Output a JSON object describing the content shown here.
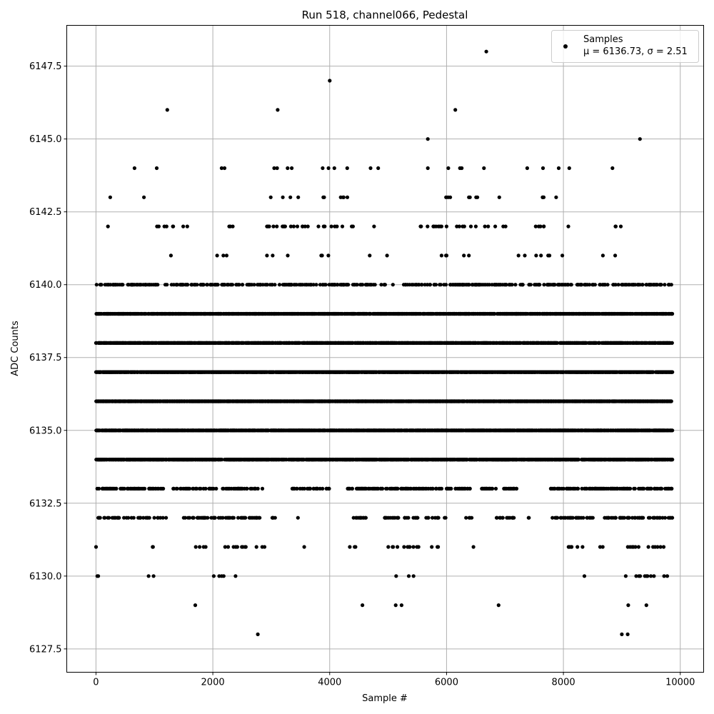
{
  "chart_data": {
    "type": "scatter",
    "title": "Run 518, channel066, Pedestal",
    "xlabel": "Sample #",
    "ylabel": "ADC Counts",
    "xlim": [
      -500,
      10400
    ],
    "ylim": [
      6126.7,
      6148.9
    ],
    "x_ticks": [
      0,
      2000,
      4000,
      6000,
      8000,
      10000
    ],
    "x_tick_labels": [
      "0",
      "2000",
      "4000",
      "6000",
      "8000",
      "10000"
    ],
    "y_ticks": [
      6127.5,
      6130.0,
      6132.5,
      6135.0,
      6137.5,
      6140.0,
      6142.5,
      6145.0,
      6147.5
    ],
    "y_tick_labels": [
      "6127.5",
      "6130.0",
      "6132.5",
      "6135.0",
      "6137.5",
      "6140.0",
      "6142.5",
      "6145.0",
      "6147.5"
    ],
    "grid": true,
    "legend": {
      "placement": "top-right",
      "entries": [
        "Samples",
        "μ = 6136.73, σ = 2.51"
      ]
    },
    "marker_color": "#000000",
    "series": [
      {
        "name": "Samples",
        "n_points": 9900,
        "x_range": [
          0,
          9860
        ],
        "sparse_levels": [
          {
            "y": 6148,
            "x": [
              6680
            ]
          },
          {
            "y": 6147,
            "x": [
              4000
            ]
          },
          {
            "y": 6146,
            "x": [
              1220,
              3110,
              6150
            ]
          },
          {
            "y": 6145,
            "x": [
              5680,
              9310
            ]
          },
          {
            "y": 6144,
            "x": [
              660,
              1040,
              2150,
              2200,
              3050,
              3100,
              3280,
              3350,
              3880,
              3980,
              4080,
              4300,
              4700,
              4830,
              5680,
              6030,
              6230,
              6260,
              6640,
              7380,
              7650,
              7920,
              8100,
              8840
            ]
          },
          {
            "y": 6129,
            "x": [
              1700,
              4560,
              5130,
              5230,
              6890,
              9110,
              9420
            ]
          },
          {
            "y": 6128,
            "x": [
              2770,
              9000,
              9100
            ]
          }
        ],
        "dense_levels": [
          {
            "y": 6143,
            "segments": [
              [
                240,
                245
              ],
              [
                730,
                820
              ],
              [
                1150,
                1350
              ],
              [
                1430,
                1450
              ],
              [
                2950,
                3500
              ],
              [
                3650,
                4000
              ],
              [
                4100,
                4300
              ],
              [
                4650,
                4720
              ],
              [
                5990,
                6750
              ],
              [
                6850,
                6900
              ],
              [
                7340,
                7430
              ],
              [
                7600,
                7900
              ]
            ],
            "density": 0.05
          },
          {
            "y": 6142,
            "segments": [
              [
                90,
                280
              ],
              [
                520,
                570
              ],
              [
                780,
                800
              ],
              [
                1030,
                1100
              ],
              [
                1150,
                1400
              ],
              [
                1480,
                1600
              ],
              [
                2280,
                2350
              ],
              [
                2900,
                4450
              ],
              [
                4650,
                4800
              ],
              [
                5020,
                5080
              ],
              [
                5530,
                6850
              ],
              [
                6950,
                7050
              ],
              [
                7350,
                7950
              ],
              [
                8050,
                8100
              ],
              [
                8890,
                9050
              ],
              [
                9300,
                9310
              ],
              [
                9800,
                9850
              ]
            ],
            "density": 0.06
          },
          {
            "y": 6141,
            "segments": [
              [
                60,
                120
              ],
              [
                1280,
                1300
              ],
              [
                1860,
                1870
              ],
              [
                2050,
                2250
              ],
              [
                2720,
                2730
              ],
              [
                2850,
                3050
              ],
              [
                3200,
                3450
              ],
              [
                3750,
                4150
              ],
              [
                4260,
                4320
              ],
              [
                4600,
                4750
              ],
              [
                4980,
                5010
              ],
              [
                5870,
                6000
              ],
              [
                6120,
                6300
              ],
              [
                6350,
                6500
              ],
              [
                6650,
                7050
              ],
              [
                7200,
                7800
              ],
              [
                7980,
                8020
              ],
              [
                8650,
                8900
              ],
              [
                9160,
                9170
              ]
            ],
            "density": 0.05
          },
          {
            "y": 6140,
            "segments": [
              [
                0,
                1850
              ],
              [
                1850,
                2450
              ],
              [
                2500,
                3550
              ],
              [
                3550,
                5100
              ],
              [
                5250,
                9850
              ]
            ],
            "density": 0.2
          },
          {
            "y": 6139,
            "segments": [
              [
                0,
                9860
              ]
            ],
            "density": 0.5
          },
          {
            "y": 6138,
            "segments": [
              [
                0,
                9860
              ]
            ],
            "density": 0.6
          },
          {
            "y": 6137,
            "segments": [
              [
                0,
                9860
              ]
            ],
            "density": 0.65
          },
          {
            "y": 6136,
            "segments": [
              [
                0,
                9860
              ]
            ],
            "density": 0.7
          },
          {
            "y": 6135,
            "segments": [
              [
                0,
                9860
              ]
            ],
            "density": 0.65
          },
          {
            "y": 6134,
            "segments": [
              [
                0,
                9860
              ]
            ],
            "density": 0.6
          },
          {
            "y": 6133,
            "segments": [
              [
                0,
                1150
              ],
              [
                1300,
                2850
              ],
              [
                3350,
                4000
              ],
              [
                4300,
                5950
              ],
              [
                6000,
                6400
              ],
              [
                6600,
                7200
              ],
              [
                7350,
                7400
              ],
              [
                7750,
                9860
              ]
            ],
            "density": 0.25
          },
          {
            "y": 6132,
            "segments": [
              [
                0,
                1200
              ],
              [
                1400,
                2800
              ],
              [
                3000,
                3100
              ],
              [
                3450,
                3460
              ],
              [
                4350,
                4700
              ],
              [
                4900,
                6000
              ],
              [
                6300,
                6450
              ],
              [
                6850,
                7150
              ],
              [
                7400,
                7420
              ],
              [
                7800,
                8500
              ],
              [
                8700,
                9860
              ]
            ],
            "density": 0.2
          },
          {
            "y": 6131,
            "segments": [
              [
                0,
                20
              ],
              [
                500,
                520
              ],
              [
                880,
                1020
              ],
              [
                1600,
                2900
              ],
              [
                3550,
                3560
              ],
              [
                4300,
                4450
              ],
              [
                5000,
                5900
              ],
              [
                6450,
                6470
              ],
              [
                7950,
                8700
              ],
              [
                9050,
                9860
              ]
            ],
            "density": 0.08
          },
          {
            "y": 6130,
            "segments": [
              [
                20,
                70
              ],
              [
                230,
                260
              ],
              [
                680,
                700
              ],
              [
                850,
                1000
              ],
              [
                1650,
                1750
              ],
              [
                1950,
                2300
              ],
              [
                2380,
                2420
              ],
              [
                2680,
                2820
              ],
              [
                5100,
                5500
              ],
              [
                7650,
                7700
              ],
              [
                8350,
                8450
              ],
              [
                8950,
                9800
              ]
            ],
            "density": 0.06
          }
        ]
      }
    ]
  }
}
